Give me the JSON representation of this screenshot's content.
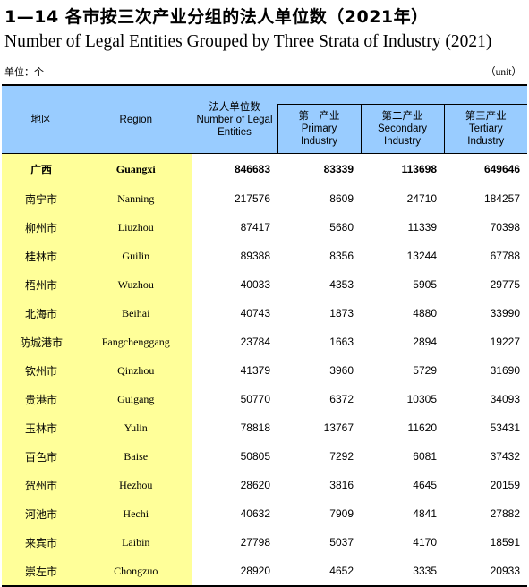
{
  "title_cn": "1—14  各市按三次产业分组的法人单位数（2021年）",
  "title_en": "Number of Legal Entities Grouped by Three Strata of Industry (2021)",
  "unit_cn": "单位：个",
  "unit_en": "（unit）",
  "headers": {
    "area_cn": "地区",
    "region_en": "Region",
    "total_cn": "法人单位数",
    "total_en": "Number of Legal Entities",
    "primary_cn": "第一产业",
    "primary_en": "Primary Industry",
    "secondary_cn": "第二产业",
    "secondary_en": "Secondary Industry",
    "tertiary_cn": "第三产业",
    "tertiary_en": "Tertiary Industry"
  },
  "rows": [
    {
      "cn": "广西",
      "en": "Guangxi",
      "total": "846683",
      "primary": "83339",
      "secondary": "113698",
      "tertiary": "649646"
    },
    {
      "cn": "南宁市",
      "en": "Nanning",
      "total": "217576",
      "primary": "8609",
      "secondary": "24710",
      "tertiary": "184257"
    },
    {
      "cn": "柳州市",
      "en": "Liuzhou",
      "total": "87417",
      "primary": "5680",
      "secondary": "11339",
      "tertiary": "70398"
    },
    {
      "cn": "桂林市",
      "en": "Guilin",
      "total": "89388",
      "primary": "8356",
      "secondary": "13244",
      "tertiary": "67788"
    },
    {
      "cn": "梧州市",
      "en": "Wuzhou",
      "total": "40033",
      "primary": "4353",
      "secondary": "5905",
      "tertiary": "29775"
    },
    {
      "cn": "北海市",
      "en": "Beihai",
      "total": "40743",
      "primary": "1873",
      "secondary": "4880",
      "tertiary": "33990"
    },
    {
      "cn": "防城港市",
      "en": "Fangchenggang",
      "total": "23784",
      "primary": "1663",
      "secondary": "2894",
      "tertiary": "19227"
    },
    {
      "cn": "钦州市",
      "en": "Qinzhou",
      "total": "41379",
      "primary": "3960",
      "secondary": "5729",
      "tertiary": "31690"
    },
    {
      "cn": "贵港市",
      "en": "Guigang",
      "total": "50770",
      "primary": "6372",
      "secondary": "10305",
      "tertiary": "34093"
    },
    {
      "cn": "玉林市",
      "en": "Yulin",
      "total": "78818",
      "primary": "13767",
      "secondary": "11620",
      "tertiary": "53431"
    },
    {
      "cn": "百色市",
      "en": "Baise",
      "total": "50805",
      "primary": "7292",
      "secondary": "6081",
      "tertiary": "37432"
    },
    {
      "cn": "贺州市",
      "en": "Hezhou",
      "total": "28620",
      "primary": "3816",
      "secondary": "4645",
      "tertiary": "20159"
    },
    {
      "cn": "河池市",
      "en": "Hechi",
      "total": "40632",
      "primary": "7909",
      "secondary": "4841",
      "tertiary": "27882"
    },
    {
      "cn": "来宾市",
      "en": "Laibin",
      "total": "27798",
      "primary": "5037",
      "secondary": "4170",
      "tertiary": "18591"
    },
    {
      "cn": "崇左市",
      "en": "Chongzuo",
      "total": "28920",
      "primary": "4652",
      "secondary": "3335",
      "tertiary": "20933"
    }
  ]
}
